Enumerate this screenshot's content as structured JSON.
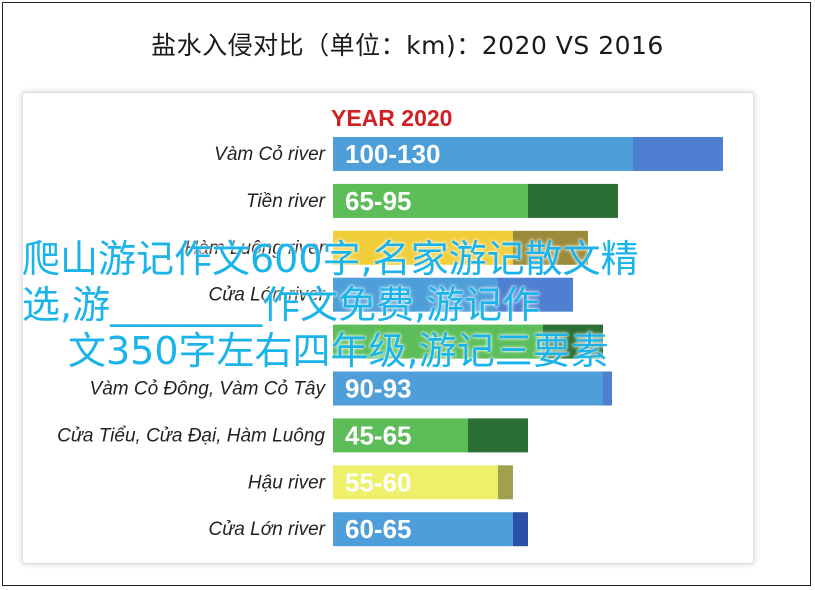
{
  "page_title": "盐水入侵对比（单位：km)：2020 VS 2016",
  "overlay": {
    "line1": "爬山游记作文600字,名家游记散文精",
    "line2": "选,游________作文免费,游记作",
    "line3": "文350字左右四年级,游记三要素"
  },
  "colors": {
    "title_red": "#d11f26",
    "overlay_blue": "#1ab3ea"
  },
  "chart_data": {
    "type": "bar",
    "orientation": "horizontal",
    "title": "YEAR 2020",
    "categories": [
      "Vàm Cỏ river",
      "Tiền river",
      "Hàm Luông river",
      "Cửa Lớn river",
      "",
      "Vàm Cỏ Đông, Vàm Cỏ Tây",
      "Cửa Tiểu, Cửa Đại, Hàm Luông",
      "Hậu river",
      "Cửa Lớn river"
    ],
    "labels": [
      "100-130",
      "65-95",
      "",
      "",
      "",
      "90-93",
      "45-65",
      "55-60",
      "60-65"
    ],
    "ranges": [
      {
        "min": 100,
        "max": 130,
        "color": "#4e9fd9",
        "range_color": "#4f7fd1"
      },
      {
        "min": 65,
        "max": 95,
        "color": "#5cbd59",
        "range_color": "#2b6f34"
      },
      {
        "min": 60,
        "max": 85,
        "color": "#f1cd3a",
        "range_color": "#9a8a3a"
      },
      {
        "min": 55,
        "max": 80,
        "color": "#4e9fd9",
        "range_color": "#4f7fd1"
      },
      {
        "min": 70,
        "max": 90,
        "color": "#5cbd59",
        "range_color": "#2b6f34"
      },
      {
        "min": 90,
        "max": 93,
        "color": "#4e9fd9",
        "range_color": "#4f7fd1"
      },
      {
        "min": 45,
        "max": 65,
        "color": "#5cbd59",
        "range_color": "#2b6f34"
      },
      {
        "min": 55,
        "max": 60,
        "color": "#eef069",
        "range_color": "#9fa14f"
      },
      {
        "min": 60,
        "max": 65,
        "color": "#4e9fd9",
        "range_color": "#2c4fa8"
      }
    ],
    "xlim": [
      0,
      130
    ],
    "grid": false,
    "legend": "none"
  }
}
